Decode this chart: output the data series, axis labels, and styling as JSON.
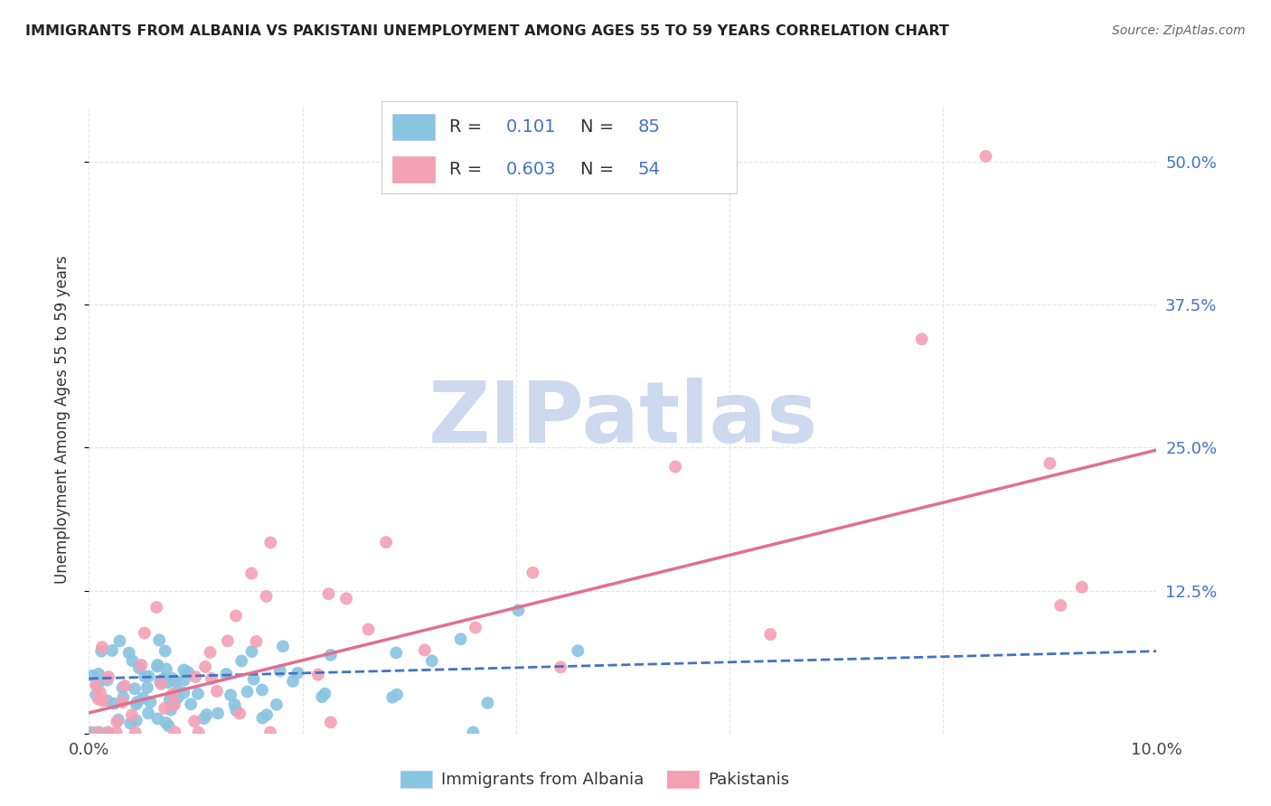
{
  "title": "IMMIGRANTS FROM ALBANIA VS PAKISTANI UNEMPLOYMENT AMONG AGES 55 TO 59 YEARS CORRELATION CHART",
  "source": "Source: ZipAtlas.com",
  "ylabel": "Unemployment Among Ages 55 to 59 years",
  "xlim": [
    0.0,
    0.1
  ],
  "ylim": [
    0.0,
    0.55
  ],
  "ytick_positions": [
    0.0,
    0.125,
    0.25,
    0.375,
    0.5
  ],
  "ytick_labels": [
    "",
    "12.5%",
    "25.0%",
    "37.5%",
    "50.0%"
  ],
  "xtick_positions": [
    0.0,
    0.02,
    0.04,
    0.06,
    0.08,
    0.1
  ],
  "xtick_labels": [
    "0.0%",
    "",
    "",
    "",
    "",
    "10.0%"
  ],
  "albania_color": "#89c4e1",
  "pakistan_color": "#f4a0b5",
  "albania_R": 0.101,
  "albania_N": 85,
  "pakistan_R": 0.603,
  "pakistan_N": 54,
  "albania_trend_x": [
    0.0,
    0.1
  ],
  "albania_trend_y": [
    0.048,
    0.072
  ],
  "pakistan_trend_x": [
    0.0,
    0.1
  ],
  "pakistan_trend_y": [
    0.018,
    0.248
  ],
  "watermark": "ZIPatlas",
  "watermark_color": "#ccd9ee",
  "background_color": "#ffffff",
  "grid_color": "#dddddd",
  "title_color": "#222222",
  "blue_color": "#4472c4",
  "pink_trend_color": "#e07090",
  "legend_label1": "Immigrants from Albania",
  "legend_label2": "Pakistanis"
}
